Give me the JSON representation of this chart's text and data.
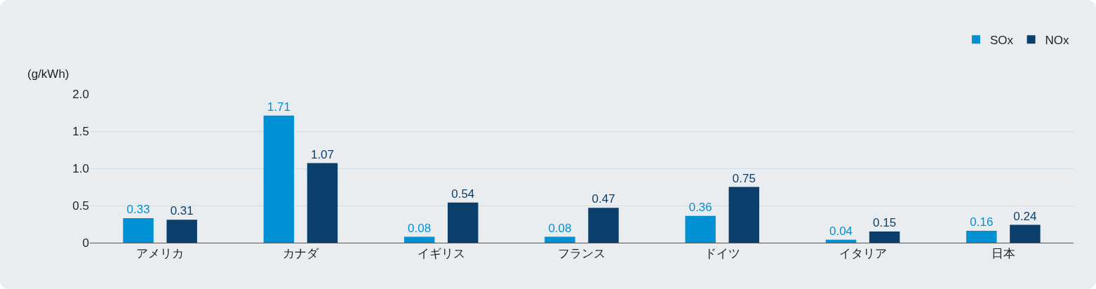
{
  "chart_data": {
    "type": "bar",
    "ylabel": "(g/kWh)",
    "categories": [
      "アメリカ",
      "カナダ",
      "イギリス",
      "フランス",
      "ドイツ",
      "イタリア",
      "日本"
    ],
    "series": [
      {
        "name": "SOx",
        "color": "#0091d5",
        "values": [
          0.33,
          1.71,
          0.08,
          0.08,
          0.36,
          0.04,
          0.16
        ]
      },
      {
        "name": "NOx",
        "color": "#0a3f6b",
        "values": [
          0.31,
          1.07,
          0.54,
          0.47,
          0.75,
          0.15,
          0.24
        ]
      }
    ],
    "ylim": [
      0,
      2.0
    ],
    "yticks": [
      {
        "value": 0,
        "label": "0"
      },
      {
        "value": 0.5,
        "label": "0.5"
      },
      {
        "value": 1,
        "label": "1.0"
      },
      {
        "value": 1.5,
        "label": "1.5"
      },
      {
        "value": 2,
        "label": "2.0"
      }
    ],
    "grid": "y",
    "legend": "top right",
    "data_labels": true
  }
}
